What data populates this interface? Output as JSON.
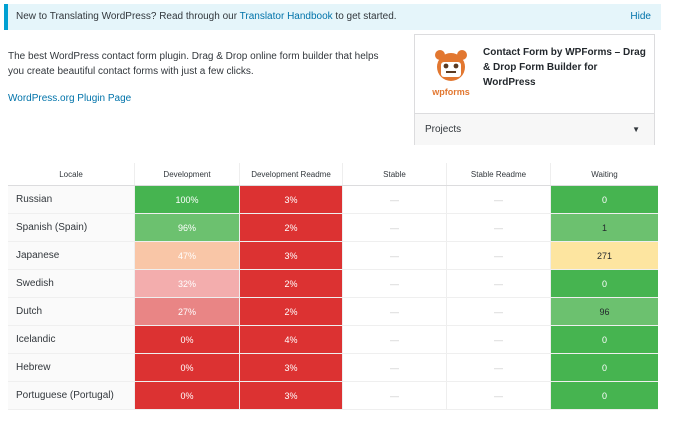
{
  "notice": {
    "text_before": "New to Translating WordPress? Read through our ",
    "link": "Translator Handbook",
    "text_after": " to get started.",
    "hide": "Hide"
  },
  "description": "The best WordPress contact form plugin. Drag & Drop online form builder that helps you create beautiful contact forms with just a few clicks.",
  "plugin_link": "WordPress.org Plugin Page",
  "card": {
    "logo_text": "wpforms",
    "title": "Contact Form by WPForms – Drag & Drop Form Builder for WordPress",
    "projects_label": "Projects"
  },
  "table": {
    "headers": [
      "Locale",
      "Development",
      "Development Readme",
      "Stable",
      "Stable Readme",
      "Waiting"
    ],
    "rows": [
      {
        "locale": "Russian",
        "dev": "100%",
        "dev_readme": "3%",
        "stable": "—",
        "stable_readme": "—",
        "waiting": "0"
      },
      {
        "locale": "Spanish (Spain)",
        "dev": "96%",
        "dev_readme": "2%",
        "stable": "—",
        "stable_readme": "—",
        "waiting": "1"
      },
      {
        "locale": "Japanese",
        "dev": "47%",
        "dev_readme": "3%",
        "stable": "—",
        "stable_readme": "—",
        "waiting": "271"
      },
      {
        "locale": "Swedish",
        "dev": "32%",
        "dev_readme": "2%",
        "stable": "—",
        "stable_readme": "—",
        "waiting": "0"
      },
      {
        "locale": "Dutch",
        "dev": "27%",
        "dev_readme": "2%",
        "stable": "—",
        "stable_readme": "—",
        "waiting": "96"
      },
      {
        "locale": "Icelandic",
        "dev": "0%",
        "dev_readme": "4%",
        "stable": "—",
        "stable_readme": "—",
        "waiting": "0"
      },
      {
        "locale": "Hebrew",
        "dev": "0%",
        "dev_readme": "3%",
        "stable": "—",
        "stable_readme": "—",
        "waiting": "0"
      },
      {
        "locale": "Portuguese (Portugal)",
        "dev": "0%",
        "dev_readme": "3%",
        "stable": "—",
        "stable_readme": "—",
        "waiting": "0"
      }
    ],
    "dev_colors": [
      "#46b450",
      "#6cc16f",
      "#f9c6a7",
      "#f3adad",
      "#e98585",
      "#dc3232",
      "#dc3232",
      "#dc3232"
    ],
    "dev_readme_color": "#dc3232",
    "waiting_colors": [
      "#46b450",
      "#6cc16f",
      "#fde5a0",
      "#46b450",
      "#6cc16f",
      "#46b450",
      "#46b450",
      "#46b450"
    ]
  }
}
